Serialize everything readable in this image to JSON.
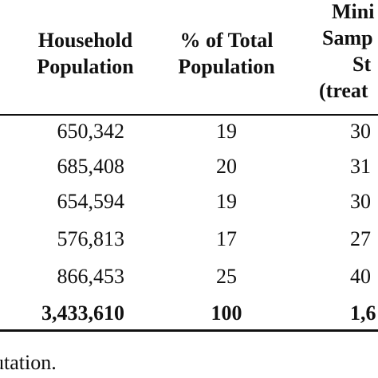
{
  "table": {
    "headers": {
      "household_population": [
        "Household",
        "Population"
      ],
      "percent_total": [
        "% of Total",
        "Population"
      ],
      "minimum_sample": [
        "Mini",
        "Samp",
        "St",
        "(treat"
      ]
    },
    "rows": [
      {
        "household": "650,342",
        "percent": "19",
        "sample": "30"
      },
      {
        "household": "685,408",
        "percent": "20",
        "sample": "31"
      },
      {
        "household": "654,594",
        "percent": "19",
        "sample": "30"
      },
      {
        "household": "576,813",
        "percent": "17",
        "sample": "27"
      },
      {
        "household": "866,453",
        "percent": "25",
        "sample": "40"
      }
    ],
    "total": {
      "household": "3,433,610",
      "percent": "100",
      "sample": "1,6"
    }
  },
  "footnote": "utation."
}
